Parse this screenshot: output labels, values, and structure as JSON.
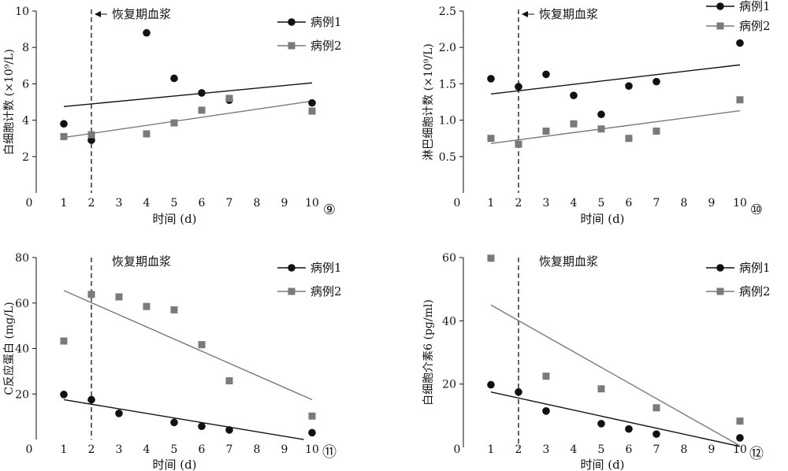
{
  "chart_data": [
    {
      "type": "scatter",
      "panel_label": "⑨",
      "xlabel": "时间 (d)",
      "ylabel": "白细胞计数 (×10⁹/L)",
      "xlim": [
        0,
        10
      ],
      "ylim": [
        0,
        10
      ],
      "xticks": [
        0,
        1,
        2,
        3,
        4,
        5,
        6,
        7,
        8,
        9,
        10
      ],
      "yticks": [
        2,
        4,
        6,
        8,
        10
      ],
      "annotation": {
        "text": "恢复期血浆",
        "x": 2,
        "arrow": true
      },
      "legend_position": "top-right",
      "series": [
        {
          "name": "病例1",
          "marker": "circle",
          "color": "#111111",
          "line_color": "#111111",
          "x": [
            1,
            2,
            4,
            5,
            6,
            7,
            10
          ],
          "y": [
            3.8,
            2.9,
            8.8,
            6.3,
            5.5,
            5.1,
            4.95
          ],
          "trend": {
            "x": [
              1,
              10
            ],
            "y": [
              4.75,
              6.05
            ]
          }
        },
        {
          "name": "病例2",
          "marker": "square",
          "color": "#7a7a7a",
          "line_color": "#7a7a7a",
          "x": [
            1,
            2,
            4,
            5,
            6,
            7,
            10
          ],
          "y": [
            3.1,
            3.2,
            3.25,
            3.85,
            4.55,
            5.2,
            4.5
          ],
          "trend": {
            "x": [
              1,
              10
            ],
            "y": [
              3.05,
              5.05
            ]
          }
        }
      ]
    },
    {
      "type": "scatter",
      "panel_label": "⑩",
      "xlabel": "时间 (d)",
      "ylabel": "淋巴细胞计数 (×10⁹/L)",
      "xlim": [
        0,
        10
      ],
      "ylim": [
        0,
        2.5
      ],
      "xticks": [
        0,
        1,
        2,
        3,
        4,
        5,
        6,
        7,
        8,
        9,
        10
      ],
      "yticks": [
        0.5,
        1.0,
        1.5,
        2.0,
        2.5
      ],
      "annotation": {
        "text": "恢复期血浆",
        "x": 2,
        "arrow": true
      },
      "legend_position": "top-right",
      "series": [
        {
          "name": "病例1",
          "marker": "circle",
          "color": "#111111",
          "line_color": "#111111",
          "x": [
            1,
            2,
            3,
            4,
            5,
            6,
            7,
            10
          ],
          "y": [
            1.57,
            1.46,
            1.63,
            1.34,
            1.08,
            1.47,
            1.53,
            2.06
          ],
          "trend": {
            "x": [
              1,
              10
            ],
            "y": [
              1.36,
              1.76
            ]
          }
        },
        {
          "name": "病例2",
          "marker": "square",
          "color": "#7a7a7a",
          "line_color": "#7a7a7a",
          "x": [
            1,
            2,
            3,
            4,
            5,
            6,
            7,
            10
          ],
          "y": [
            0.75,
            0.67,
            0.85,
            0.95,
            0.88,
            0.75,
            0.85,
            1.28
          ],
          "trend": {
            "x": [
              1,
              10
            ],
            "y": [
              0.68,
              1.13
            ]
          }
        }
      ]
    },
    {
      "type": "scatter",
      "panel_label": "⑪",
      "xlabel": "时间 (d)",
      "ylabel": "C反应蛋白 (mg/L)",
      "xlim": [
        0,
        10
      ],
      "ylim": [
        0,
        80
      ],
      "xticks": [
        0,
        1,
        2,
        3,
        4,
        5,
        6,
        7,
        8,
        9,
        10
      ],
      "yticks": [
        20,
        40,
        60,
        80
      ],
      "annotation": {
        "text": "恢复期血浆",
        "x": 2,
        "arrow": false
      },
      "legend_position": "top-right",
      "series": [
        {
          "name": "病例1",
          "marker": "circle",
          "color": "#111111",
          "line_color": "#111111",
          "x": [
            1,
            2,
            3,
            5,
            6,
            7,
            10
          ],
          "y": [
            19.8,
            17.5,
            11.5,
            7.5,
            5.8,
            4.2,
            3.0
          ],
          "trend": {
            "x": [
              1,
              9.7
            ],
            "y": [
              17.5,
              0
            ]
          }
        },
        {
          "name": "病例2",
          "marker": "square",
          "color": "#7a7a7a",
          "line_color": "#7a7a7a",
          "x": [
            1,
            2,
            3,
            4,
            5,
            6,
            7,
            10
          ],
          "y": [
            43.3,
            63.8,
            62.7,
            58.5,
            57.0,
            41.7,
            25.8,
            10.3
          ],
          "trend": {
            "x": [
              1,
              10
            ],
            "y": [
              65.5,
              17.5
            ]
          }
        }
      ]
    },
    {
      "type": "scatter",
      "panel_label": "⑫",
      "xlabel": "时间 (d)",
      "ylabel": "白细胞介素6 (pg/ml)",
      "xlim": [
        0,
        10
      ],
      "ylim": [
        0,
        60
      ],
      "xticks": [
        0,
        1,
        2,
        3,
        4,
        5,
        6,
        7,
        8,
        9,
        10
      ],
      "yticks": [
        20,
        40,
        60
      ],
      "annotation": {
        "text": "恢复期血浆",
        "x": 2,
        "arrow": false
      },
      "legend_position": "top-right",
      "series": [
        {
          "name": "病例1",
          "marker": "circle",
          "color": "#111111",
          "line_color": "#111111",
          "x": [
            1,
            2,
            3,
            5,
            6,
            7,
            10
          ],
          "y": [
            19.8,
            17.5,
            11.5,
            7.5,
            5.8,
            4.2,
            3.0
          ],
          "trend": {
            "x": [
              1,
              10
            ],
            "y": [
              17.5,
              0.3
            ]
          }
        },
        {
          "name": "病例2",
          "marker": "square",
          "color": "#7a7a7a",
          "line_color": "#7a7a7a",
          "x": [
            1,
            3,
            5,
            7,
            10
          ],
          "y": [
            59.8,
            22.5,
            18.5,
            12.5,
            8.3
          ],
          "trend": {
            "x": [
              1,
              10
            ],
            "y": [
              45.0,
              0.5
            ]
          }
        }
      ]
    }
  ]
}
